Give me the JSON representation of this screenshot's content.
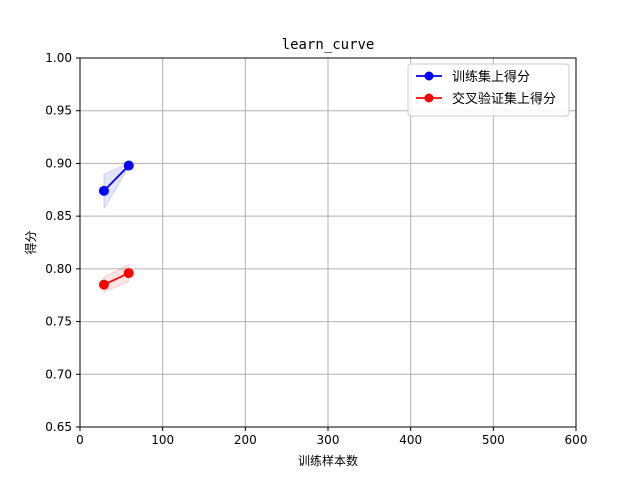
{
  "chart_data": {
    "type": "line",
    "title": "learn_curve",
    "xlabel": "训练样本数",
    "ylabel": "得分",
    "xlim": [
      0,
      600
    ],
    "ylim": [
      0.65,
      1.0
    ],
    "xticks": [
      0,
      100,
      200,
      300,
      400,
      500,
      600
    ],
    "yticks": [
      0.65,
      0.7,
      0.75,
      0.8,
      0.85,
      0.9,
      0.95,
      1.0
    ],
    "xtick_labels": [
      "0",
      "100",
      "200",
      "300",
      "400",
      "500",
      "600"
    ],
    "ytick_labels": [
      "0.65",
      "0.70",
      "0.75",
      "0.80",
      "0.85",
      "0.90",
      "0.95",
      "1.00"
    ],
    "grid": true,
    "legend_position": "top-right",
    "series": [
      {
        "name": "训练集上得分",
        "color": "#0000ff",
        "fill_color": "#0000ff",
        "x": [
          29,
          59
        ],
        "y": [
          0.874,
          0.898
        ],
        "y_lower": [
          0.857,
          0.897
        ],
        "y_upper": [
          0.89,
          0.9
        ]
      },
      {
        "name": "交叉验证集上得分",
        "color": "#ff0000",
        "fill_color": "#ff0000",
        "x": [
          29,
          59
        ],
        "y": [
          0.785,
          0.796
        ],
        "y_lower": [
          0.778,
          0.788
        ],
        "y_upper": [
          0.792,
          0.804
        ]
      }
    ]
  }
}
